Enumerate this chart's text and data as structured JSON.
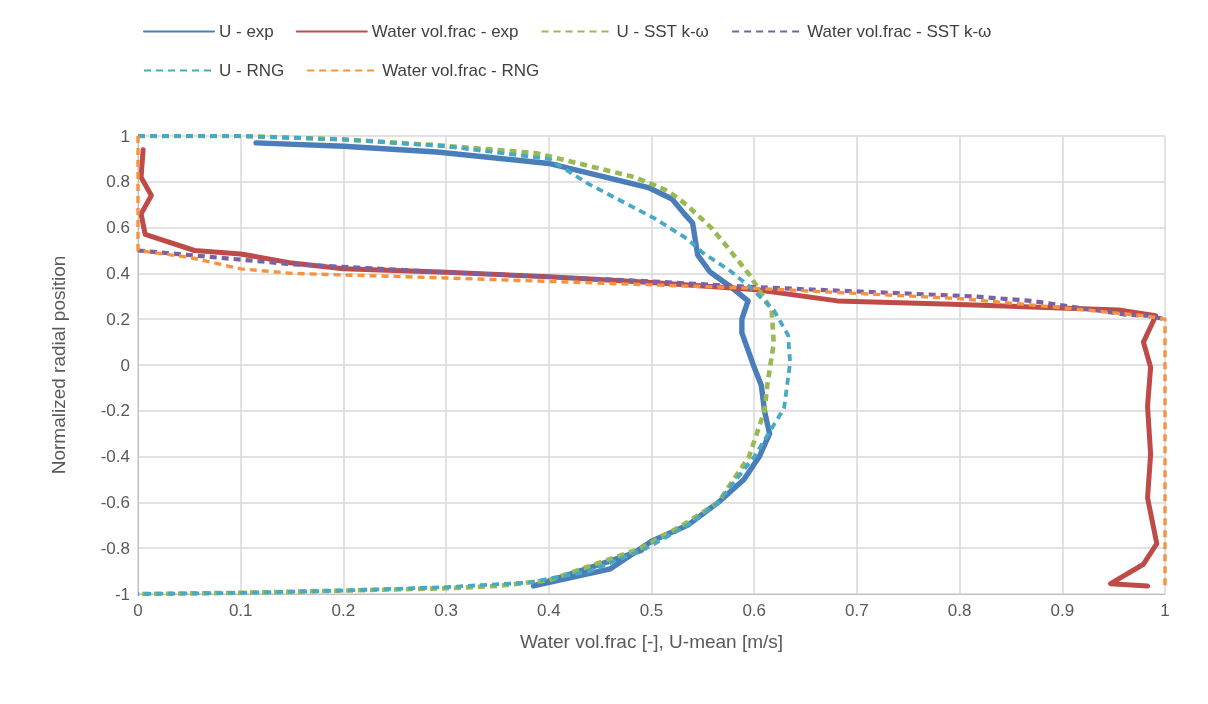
{
  "chart_data": {
    "type": "line",
    "xlabel": "Water vol.frac [-], U-mean [m/s]",
    "ylabel": "Normalized radial position",
    "xlim": [
      0,
      1
    ],
    "xticks": [
      0,
      0.1,
      0.2,
      0.3,
      0.4,
      0.5,
      0.6,
      0.7,
      0.8,
      0.9,
      1
    ],
    "ylim": [
      -1,
      1
    ],
    "yticks": [
      -1,
      -0.8,
      -0.6,
      -0.4,
      -0.2,
      0,
      0.2,
      0.4,
      0.6,
      0.8,
      1
    ],
    "grid": true,
    "legend": "top",
    "marker": "none",
    "series": [
      {
        "name": "U - exp",
        "color": "#4a7ebb",
        "line_style": "solid",
        "x": [
          0.115,
          0.2,
          0.291,
          0.4,
          0.497,
          0.52,
          0.532,
          0.54,
          0.545,
          0.557,
          0.579,
          0.594,
          0.588,
          0.588,
          0.6,
          0.607,
          0.61,
          0.615,
          0.605,
          0.59,
          0.565,
          0.535,
          0.5,
          0.46,
          0.385,
          0.43,
          0.49
        ],
        "values": [
          0.97,
          0.955,
          0.93,
          0.88,
          0.775,
          0.725,
          0.66,
          0.62,
          0.48,
          0.406,
          0.335,
          0.28,
          0.2,
          0.14,
          -0.01,
          -0.09,
          -0.2,
          -0.3,
          -0.4,
          -0.5,
          -0.6,
          -0.7,
          -0.77,
          -0.89,
          -0.965,
          -0.9,
          -0.81
        ]
      },
      {
        "name": "Water vol.frac - exp",
        "color": "#be4b48",
        "line_style": "solid",
        "x": [
          0.005,
          0.003,
          0.013,
          0.003,
          0.007,
          0.055,
          0.1,
          0.15,
          0.2,
          0.3,
          0.4,
          0.5,
          0.6,
          0.681,
          0.793,
          0.955,
          0.991,
          0.979,
          0.986,
          0.983,
          0.986,
          0.983,
          0.992,
          0.979,
          0.947,
          0.983
        ],
        "values": [
          0.94,
          0.82,
          0.74,
          0.66,
          0.57,
          0.5,
          0.485,
          0.445,
          0.42,
          0.405,
          0.385,
          0.36,
          0.33,
          0.28,
          0.265,
          0.24,
          0.215,
          0.1,
          -0.01,
          -0.18,
          -0.39,
          -0.58,
          -0.78,
          -0.87,
          -0.955,
          -0.965
        ]
      },
      {
        "name": "U - SST k-ω",
        "color": "#98b954",
        "line_style": "dashed",
        "x": [
          0,
          0.1,
          0.2,
          0.291,
          0.388,
          0.484,
          0.516,
          0.534,
          0.558,
          0.573,
          0.596,
          0.617,
          0.619,
          0.613,
          0.61,
          0.595,
          0.565,
          0.53,
          0.49,
          0.4,
          0.35,
          0.3,
          0.2,
          0.1,
          0
        ],
        "values": [
          1,
          1,
          0.985,
          0.96,
          0.925,
          0.82,
          0.76,
          0.7,
          0.6,
          0.52,
          0.39,
          0.24,
          0.095,
          -0.08,
          -0.2,
          -0.4,
          -0.6,
          -0.7,
          -0.8,
          -0.94,
          -0.965,
          -0.975,
          -0.985,
          -0.995,
          -1
        ]
      },
      {
        "name": "Water vol.frac - SST k-ω",
        "color": "#7d60a0",
        "line_style": "dashed",
        "x": [
          0,
          0.1,
          0.15,
          0.3,
          0.5,
          0.6,
          0.812,
          0.87,
          0.962,
          0.983,
          1
        ],
        "values": [
          0.5,
          0.46,
          0.44,
          0.405,
          0.365,
          0.34,
          0.3,
          0.28,
          0.22,
          0.215,
          0.2
        ]
      },
      {
        "name": "U - RNG",
        "color": "#46aac5",
        "line_style": "dashed",
        "x": [
          0,
          0.1,
          0.2,
          0.3,
          0.4,
          0.439,
          0.503,
          0.535,
          0.55,
          0.577,
          0.596,
          0.619,
          0.633,
          0.635,
          0.629,
          0.6,
          0.565,
          0.535,
          0.495,
          0.44,
          0.38,
          0.3,
          0.2,
          0.1,
          0
        ],
        "values": [
          1,
          1,
          0.985,
          0.955,
          0.9,
          0.79,
          0.64,
          0.55,
          0.49,
          0.41,
          0.34,
          0.24,
          0.13,
          0.01,
          -0.19,
          -0.4,
          -0.6,
          -0.7,
          -0.8,
          -0.9,
          -0.95,
          -0.97,
          -0.985,
          -0.995,
          -1
        ]
      },
      {
        "name": "Water vol.frac - RNG",
        "color": "#f69240",
        "line_style": "dashed",
        "x": [
          0,
          0,
          0.05,
          0.1,
          0.15,
          0.3,
          0.5,
          0.6,
          0.8,
          0.9,
          0.98,
          1,
          1
        ],
        "values": [
          1,
          0.5,
          0.47,
          0.42,
          0.4,
          0.38,
          0.35,
          0.335,
          0.29,
          0.25,
          0.215,
          0.2,
          -0.97
        ]
      }
    ]
  }
}
